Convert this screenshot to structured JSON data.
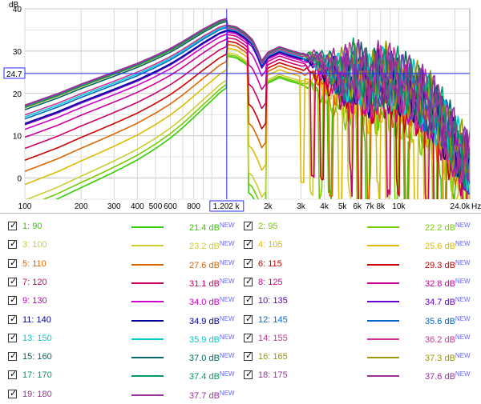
{
  "chart_data": {
    "type": "line",
    "ylabel": "dB",
    "x_axis_unit": "Hz",
    "x_scale": "log",
    "xlim": [
      100,
      24000
    ],
    "ylim": [
      -5,
      40
    ],
    "y_ticks": [
      0,
      10,
      20,
      30,
      40
    ],
    "x_tick_labels": [
      {
        "value": 100,
        "label": "100"
      },
      {
        "value": 200,
        "label": "200"
      },
      {
        "value": 300,
        "label": "300"
      },
      {
        "value": 400,
        "label": "400"
      },
      {
        "value": 500,
        "label": "500"
      },
      {
        "value": 600,
        "label": "600"
      },
      {
        "value": 800,
        "label": "800"
      },
      {
        "value": 2000,
        "label": "2k"
      },
      {
        "value": 3000,
        "label": "3k"
      },
      {
        "value": 4000,
        "label": "4k"
      },
      {
        "value": 5000,
        "label": "5k"
      },
      {
        "value": 6000,
        "label": "6k"
      },
      {
        "value": 7000,
        "label": "7k"
      },
      {
        "value": 8000,
        "label": "8k"
      },
      {
        "value": 10000,
        "label": "10k"
      },
      {
        "value": 24000,
        "label": "24.0k"
      }
    ],
    "cursor": {
      "x_label": "1.202 k",
      "y_label": "24.7",
      "x": 1202,
      "y": 24.7
    },
    "grid": true,
    "base_curve": {
      "x": [
        100,
        150,
        200,
        300,
        400,
        500,
        600,
        700,
        800,
        900,
        1000,
        1100,
        1202,
        1350,
        1500,
        1650,
        1750,
        1850,
        2000,
        2300,
        2600,
        3000,
        3500,
        4000,
        5000,
        6000,
        7000,
        8000,
        10000,
        12000,
        15000,
        18000,
        21000,
        24000
      ],
      "y": [
        12.9,
        15.7,
        18,
        21,
        23.2,
        25.2,
        27,
        28.8,
        30.5,
        32,
        33.2,
        34.3,
        34.9,
        34.5,
        33.2,
        31.5,
        29.2,
        26.5,
        28.5,
        29.8,
        29,
        28.2,
        27.5,
        26,
        23.5,
        24.5,
        21.5,
        24,
        22,
        20,
        16.5,
        11,
        6,
        2.5
      ]
    },
    "series": [
      {
        "name": "1: 90",
        "color": "#33cc00",
        "offset": -13.5
      },
      {
        "name": "2: 95",
        "color": "#77cc00",
        "offset": -12.7
      },
      {
        "name": "3: 100",
        "color": "#cccc33",
        "offset": -11.7
      },
      {
        "name": "4: 105",
        "color": "#ddbb00",
        "offset": -9.3
      },
      {
        "name": "5: 110",
        "color": "#dd6600",
        "offset": -7.3
      },
      {
        "name": "6: 115",
        "color": "#cc0000",
        "offset": -5.6
      },
      {
        "name": "7: 120",
        "color": "#cc0066",
        "offset": -3.8
      },
      {
        "name": "8: 125",
        "color": "#cc0099",
        "offset": -2.1
      },
      {
        "name": "9: 130",
        "color": "#cc00cc",
        "offset": -0.9
      },
      {
        "name": "10: 135",
        "color": "#6600cc",
        "offset": -0.2
      },
      {
        "name": "11: 140",
        "color": "#000099",
        "offset": 0
      },
      {
        "name": "12: 145",
        "color": "#0066cc",
        "offset": 0.7
      },
      {
        "name": "13: 150",
        "color": "#00cccc",
        "offset": 1
      },
      {
        "name": "14: 155",
        "color": "#cc3399",
        "offset": 1.3
      },
      {
        "name": "15: 160",
        "color": "#006666",
        "offset": 2.1
      },
      {
        "name": "16: 165",
        "color": "#999900",
        "offset": 2.4
      },
      {
        "name": "17: 170",
        "color": "#009966",
        "offset": 2.5
      },
      {
        "name": "18: 175",
        "color": "#993399",
        "offset": 2.7
      },
      {
        "name": "19: 180",
        "color": "#993399",
        "offset": 2.8
      }
    ]
  },
  "legend": {
    "items": [
      {
        "label": "1: 90",
        "value": "21.4 dB",
        "color": "#33cc00"
      },
      {
        "label": "2: 95",
        "value": "22.2 dB",
        "color": "#77cc00"
      },
      {
        "label": "3: 100",
        "value": "23.2 dB",
        "color": "#cccc33"
      },
      {
        "label": "4: 105",
        "value": "25.6 dB",
        "color": "#ddbb00"
      },
      {
        "label": "5: 110",
        "value": "27.6 dB",
        "color": "#dd6600"
      },
      {
        "label": "6: 115",
        "value": "29.3 dB",
        "color": "#cc0000"
      },
      {
        "label": "7: 120",
        "value": "31.1 dB",
        "color": "#cc0066"
      },
      {
        "label": "8: 125",
        "value": "32.8 dB",
        "color": "#cc0099"
      },
      {
        "label": "9: 130",
        "value": "34.0 dB",
        "color": "#cc00cc"
      },
      {
        "label": "10: 135",
        "value": "34.7 dB",
        "color": "#6600cc"
      },
      {
        "label": "11: 140",
        "value": "34.9 dB",
        "color": "#000099"
      },
      {
        "label": "12: 145",
        "value": "35.6 dB",
        "color": "#0066cc"
      },
      {
        "label": "13: 150",
        "value": "35.9 dB",
        "color": "#00cccc"
      },
      {
        "label": "14: 155",
        "value": "36.2 dB",
        "color": "#cc3399"
      },
      {
        "label": "15: 160",
        "value": "37.0 dB",
        "color": "#006666"
      },
      {
        "label": "16: 165",
        "value": "37.3 dB",
        "color": "#999900"
      },
      {
        "label": "17: 170",
        "value": "37.4 dB",
        "color": "#009966"
      },
      {
        "label": "18: 175",
        "value": "37.6 dB",
        "color": "#993399"
      },
      {
        "label": "19: 180",
        "value": "37.7 dB",
        "color": "#993399"
      }
    ],
    "new_badge": "NEW",
    "checked_mark": "✓"
  }
}
